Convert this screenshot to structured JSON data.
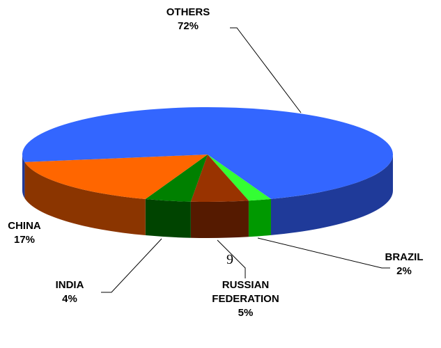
{
  "chart_data": {
    "type": "pie3d",
    "categories": [
      "BRAZIL",
      "RUSSIAN FEDERATION",
      "INDIA",
      "CHINA",
      "OTHERS"
    ],
    "values": [
      2,
      5,
      4,
      17,
      72
    ],
    "value_labels": [
      "2%",
      "5%",
      "4%",
      "17%",
      "72%"
    ],
    "colors": [
      "#33ff33",
      "#993300",
      "#008000",
      "#ff6600",
      "#3366ff"
    ],
    "side_colors": [
      "#009900",
      "#551a00",
      "#004400",
      "#8b3500",
      "#1f3a99"
    ],
    "annotation": "9"
  }
}
